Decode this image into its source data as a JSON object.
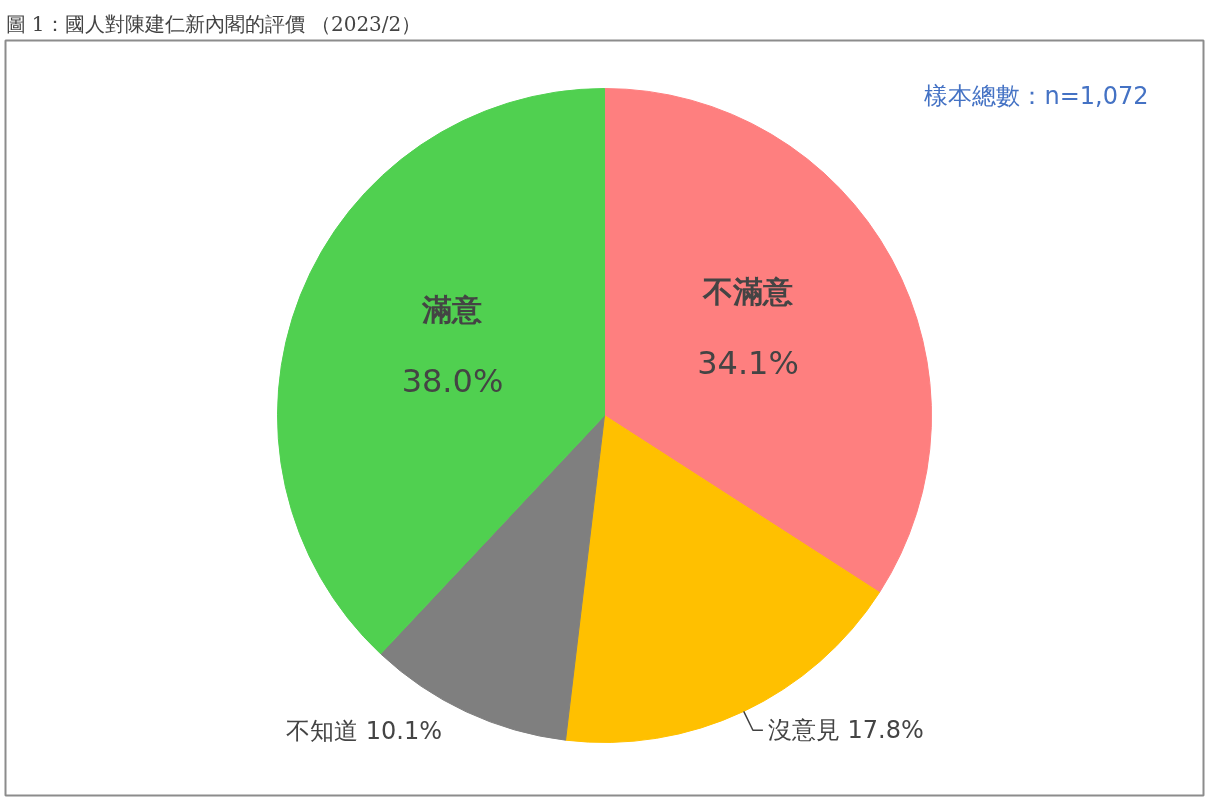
{
  "chart_data": {
    "type": "pie",
    "title": "圖 1：國人對陳建仁新內閣的評價 （2023/2）",
    "categories": [
      "不滿意",
      "沒意見",
      "不知道",
      "滿意"
    ],
    "values": [
      34.1,
      17.8,
      10.1,
      38.0
    ],
    "value_labels": [
      "34.1%",
      "17.8%",
      "10.1%",
      "38.0%"
    ],
    "colors": [
      "#fe7f7f",
      "#ffc000",
      "#7f7f7f",
      "#50d050"
    ],
    "annotations": [
      "樣本總數：n=1,072"
    ]
  }
}
